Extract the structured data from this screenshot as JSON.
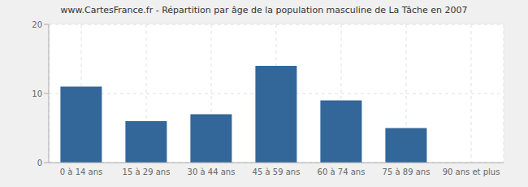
{
  "chart_data": {
    "type": "bar",
    "title": "www.CartesFrance.fr - Répartition par âge de la population masculine de La Tâche en 2007",
    "categories": [
      "0 à 14 ans",
      "15 à 29 ans",
      "30 à 44 ans",
      "45 à 59 ans",
      "60 à 74 ans",
      "75 à 89 ans",
      "90 ans et plus"
    ],
    "values": [
      11,
      6,
      7,
      14,
      9,
      5,
      0
    ],
    "color": "#336699",
    "ylim": [
      0,
      20
    ],
    "yticks": [
      0,
      10,
      20
    ],
    "grid": true
  }
}
